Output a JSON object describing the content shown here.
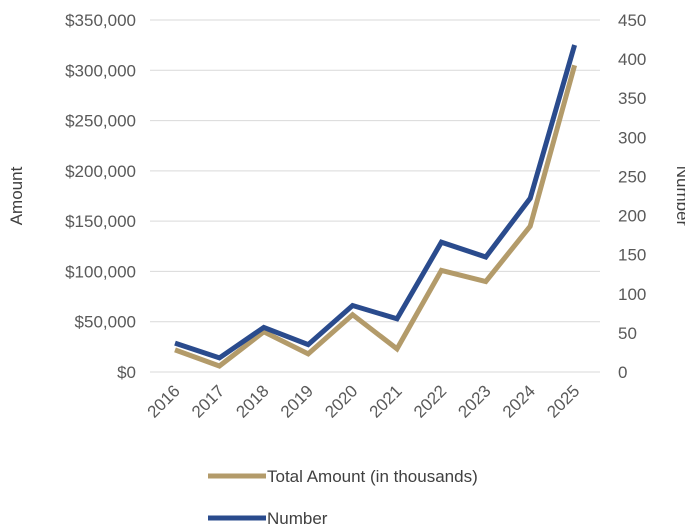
{
  "chart_data": {
    "type": "line",
    "title": "",
    "xlabel": "",
    "ylabel": "Amount",
    "y2label": "Number",
    "categories": [
      "2016",
      "2017",
      "2018",
      "2019",
      "2020",
      "2021",
      "2022",
      "2023",
      "2024",
      "2025"
    ],
    "ylim": [
      0,
      350000
    ],
    "y2lim": [
      0,
      450
    ],
    "y_ticks": [
      "$0",
      "$50,000",
      "$100,000",
      "$150,000",
      "$200,000",
      "$250,000",
      "$300,000",
      "$350,000"
    ],
    "y2_ticks": [
      "0",
      "50",
      "100",
      "150",
      "200",
      "250",
      "300",
      "350",
      "400",
      "450"
    ],
    "grid": true,
    "legend": "bottom",
    "series": [
      {
        "name": "Total Amount (in thousands)",
        "axis": "left",
        "color": "#b39b6a",
        "values": [
          22000,
          6000,
          40000,
          18000,
          57000,
          23000,
          101000,
          90000,
          145000,
          305000
        ]
      },
      {
        "name": "Number",
        "axis": "right",
        "color": "#2a4b8d",
        "values": [
          37,
          18,
          57,
          35,
          85,
          68,
          166,
          147,
          222,
          418
        ]
      }
    ]
  }
}
